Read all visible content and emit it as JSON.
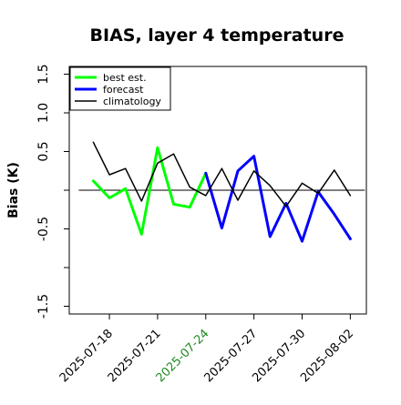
{
  "chart_data": {
    "type": "line",
    "title": "BIAS, layer 4 temperature",
    "xlabel": "",
    "ylabel": "Bias (K)",
    "ylim": [
      -1.6,
      1.6
    ],
    "xlim": [
      "2025-07-15T12:00",
      "2025-08-03T00:00"
    ],
    "yticks": [
      -1.5,
      -1.0,
      -0.5,
      0.0,
      0.5,
      1.0,
      1.5
    ],
    "yticklabels": [
      "-1.5",
      "",
      "-0.5",
      "",
      "0.5",
      "1.0",
      "1.5"
    ],
    "xticks": [
      "2025-07-18",
      "2025-07-21",
      "2025-07-24",
      "2025-07-27",
      "2025-07-30",
      "2025-08-02"
    ],
    "highlight_tick": "2025-07-24",
    "highlight_color": "#228b22",
    "zero_line": true,
    "grid": false,
    "legend_position": "top-left",
    "series": [
      {
        "name": "best est.",
        "color": "#00ff00",
        "line_width": 3,
        "x": [
          "2025-07-17",
          "2025-07-18",
          "2025-07-19",
          "2025-07-20",
          "2025-07-21",
          "2025-07-22",
          "2025-07-23",
          "2025-07-24"
        ],
        "y": [
          0.12,
          -0.1,
          0.02,
          -0.57,
          0.55,
          -0.18,
          -0.22,
          0.22
        ]
      },
      {
        "name": "forecast",
        "color": "#0000ff",
        "line_width": 3,
        "x": [
          "2025-07-24",
          "2025-07-25",
          "2025-07-26",
          "2025-07-27",
          "2025-07-28",
          "2025-07-29",
          "2025-07-30",
          "2025-07-31",
          "2025-08-01",
          "2025-08-02"
        ],
        "y": [
          0.22,
          -0.49,
          0.25,
          0.44,
          -0.6,
          -0.17,
          -0.66,
          -0.02,
          -0.31,
          -0.63
        ]
      },
      {
        "name": "climatology",
        "color": "#000000",
        "line_width": 1.5,
        "x": [
          "2025-07-17",
          "2025-07-18",
          "2025-07-19",
          "2025-07-20",
          "2025-07-21",
          "2025-07-22",
          "2025-07-23",
          "2025-07-24",
          "2025-07-25",
          "2025-07-26",
          "2025-07-27",
          "2025-07-28",
          "2025-07-29",
          "2025-07-30",
          "2025-07-31",
          "2025-08-01",
          "2025-08-02"
        ],
        "y": [
          0.62,
          0.2,
          0.28,
          -0.14,
          0.35,
          0.47,
          0.04,
          -0.07,
          0.28,
          -0.13,
          0.25,
          0.06,
          -0.21,
          0.09,
          -0.04,
          0.26,
          -0.07
        ]
      }
    ]
  }
}
